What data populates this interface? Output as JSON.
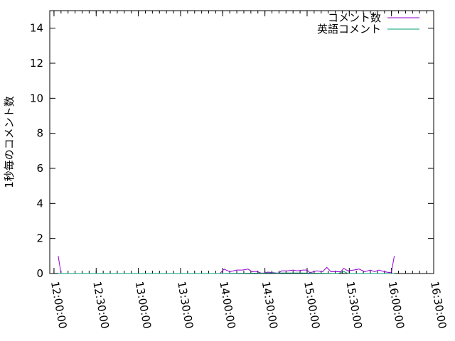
{
  "chart_data": {
    "type": "line",
    "title": "",
    "xlabel": "",
    "ylabel": "1秒毎のコメント数",
    "ylim": [
      0,
      15
    ],
    "xlim": [
      "11:57:00",
      "16:30:00"
    ],
    "yticks": [
      0,
      2,
      4,
      6,
      8,
      10,
      12,
      14
    ],
    "xticks": [
      "12:00:00",
      "12:30:00",
      "13:00:00",
      "13:30:00",
      "14:00:00",
      "14:30:00",
      "15:00:00",
      "15:30:00",
      "16:00:00",
      "16:30:00"
    ],
    "legend_position": "top-right",
    "grid": false,
    "series": [
      {
        "name": "コメント数",
        "color": "#9400d3",
        "points": [
          [
            "12:03:00",
            1
          ],
          [
            "12:05:00",
            0
          ],
          [
            "13:58:00",
            0
          ],
          [
            "14:01:00",
            0.25
          ],
          [
            "14:05:00",
            0.1
          ],
          [
            "14:10:00",
            0.2
          ],
          [
            "14:14:00",
            0.2
          ],
          [
            "14:18:00",
            0.25
          ],
          [
            "14:21:00",
            0.1
          ],
          [
            "14:24:00",
            0.12
          ],
          [
            "14:28:00",
            0
          ],
          [
            "14:32:00",
            0.08
          ],
          [
            "14:37:00",
            0.04
          ],
          [
            "14:39:00",
            0
          ],
          [
            "14:42:00",
            0.15
          ],
          [
            "14:46:00",
            0.15
          ],
          [
            "14:50:00",
            0.2
          ],
          [
            "14:53:00",
            0.15
          ],
          [
            "14:57:00",
            0.2
          ],
          [
            "15:00:00",
            0.2
          ],
          [
            "15:02:00",
            0.05
          ],
          [
            "15:07:00",
            0.15
          ],
          [
            "15:11:00",
            0.1
          ],
          [
            "15:14:00",
            0.35
          ],
          [
            "15:17:00",
            0.1
          ],
          [
            "15:22:00",
            0.1
          ],
          [
            "15:24:00",
            0.1
          ],
          [
            "15:26:00",
            0.3
          ],
          [
            "15:29:00",
            0.15
          ],
          [
            "15:33:00",
            0.2
          ],
          [
            "15:37:00",
            0.25
          ],
          [
            "15:41:00",
            0.1
          ],
          [
            "15:45:00",
            0.2
          ],
          [
            "15:48:00",
            0.1
          ],
          [
            "15:51:00",
            0.2
          ],
          [
            "15:55:00",
            0.1
          ],
          [
            "15:59:00",
            0.05
          ],
          [
            "16:00:00",
            0.1
          ],
          [
            "16:02:00",
            1
          ]
        ]
      },
      {
        "name": "英語コメント",
        "color": "#009e73",
        "points": [
          [
            "12:03:00",
            0
          ],
          [
            "14:00:00",
            0
          ],
          [
            "14:32:00",
            0.03
          ],
          [
            "14:55:00",
            0.03
          ],
          [
            "15:22:00",
            0
          ],
          [
            "15:26:00",
            0.12
          ],
          [
            "15:29:00",
            0
          ],
          [
            "16:02:00",
            0
          ]
        ]
      }
    ]
  }
}
